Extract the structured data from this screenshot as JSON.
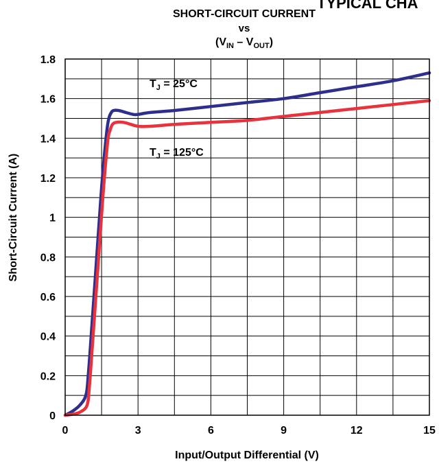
{
  "header": {
    "cut_title": "TYPICAL CHA"
  },
  "chart_data": {
    "type": "line",
    "title_line1": "SHORT-CIRCUIT CURRENT",
    "title_line2": "vs",
    "title_line3": {
      "open": "(V",
      "sub1": "IN",
      "dash": " – V",
      "sub2": "OUT",
      "close": ")"
    },
    "xlabel": "Input/Output Differential (V)",
    "ylabel": "Short-Circuit Current (A)",
    "xlim": [
      0,
      15
    ],
    "ylim": [
      0,
      1.8
    ],
    "x_ticks": [
      0,
      1.5,
      3,
      4.5,
      6,
      7.5,
      9,
      10.5,
      12,
      13.5,
      15
    ],
    "x_tick_labels": [
      "0",
      "",
      "3",
      "",
      "6",
      "",
      "9",
      "",
      "12",
      "",
      "15"
    ],
    "y_ticks": [
      0,
      0.1,
      0.2,
      0.3,
      0.4,
      0.5,
      0.6,
      0.7,
      0.8,
      0.9,
      1.0,
      1.1,
      1.2,
      1.3,
      1.4,
      1.5,
      1.6,
      1.7,
      1.8
    ],
    "y_tick_labels": [
      "0",
      "",
      "0.2",
      "",
      "0.4",
      "",
      "0.6",
      "",
      "0.8",
      "",
      "1",
      "",
      "1.2",
      "",
      "1.4",
      "",
      "1.6",
      "",
      "1.8"
    ],
    "grid": true,
    "series": [
      {
        "color": "#2e2e8c",
        "annotation": {
          "main": "T",
          "sub": "J",
          "rest": " = 25°C"
        },
        "x": [
          0,
          0.3,
          0.6,
          0.85,
          0.95,
          1.1,
          1.3,
          1.5,
          1.7,
          1.8,
          1.9,
          2.0,
          2.2,
          2.5,
          2.8,
          3.0,
          3.5,
          4.5,
          6,
          7.5,
          9,
          10.5,
          12,
          13.5,
          15
        ],
        "y": [
          0,
          0.02,
          0.05,
          0.1,
          0.2,
          0.45,
          0.8,
          1.15,
          1.42,
          1.5,
          1.53,
          1.54,
          1.54,
          1.53,
          1.52,
          1.52,
          1.53,
          1.54,
          1.56,
          1.58,
          1.6,
          1.63,
          1.66,
          1.69,
          1.73
        ]
      },
      {
        "color": "#e8323c",
        "annotation": {
          "main": "T",
          "sub": "J",
          "rest": " = 125°C"
        },
        "x": [
          0,
          0.3,
          0.6,
          0.9,
          1.0,
          1.15,
          1.35,
          1.55,
          1.75,
          1.85,
          1.95,
          2.1,
          2.4,
          2.7,
          3.0,
          3.5,
          4.5,
          6,
          7.5,
          9,
          10.5,
          12,
          13.5,
          15
        ],
        "y": [
          0,
          0.005,
          0.015,
          0.05,
          0.15,
          0.4,
          0.75,
          1.1,
          1.38,
          1.44,
          1.47,
          1.48,
          1.48,
          1.47,
          1.46,
          1.46,
          1.47,
          1.48,
          1.49,
          1.51,
          1.53,
          1.55,
          1.57,
          1.59
        ]
      }
    ]
  }
}
